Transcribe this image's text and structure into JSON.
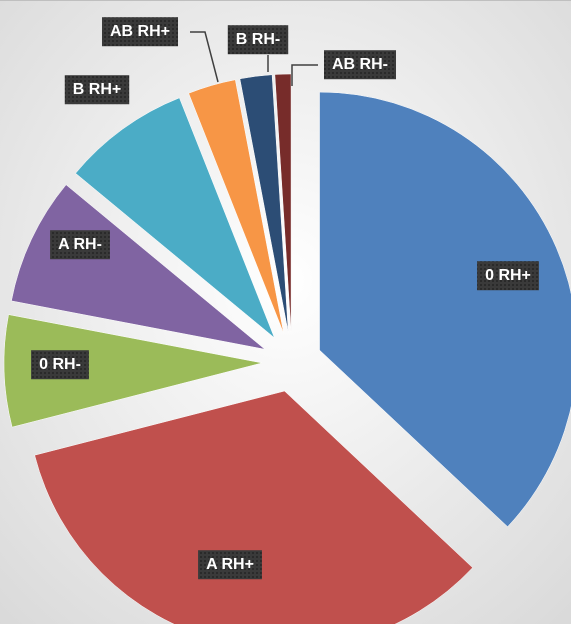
{
  "chart_data": {
    "type": "pie",
    "categories": [
      "0 RH+",
      "A RH+",
      "0 RH-",
      "A RH-",
      "B RH+",
      "AB RH+",
      "B RH-",
      "AB RH-"
    ],
    "values": [
      37,
      34,
      7,
      8,
      8,
      3,
      2,
      1
    ],
    "colors": [
      "#4f81bd",
      "#c0504d",
      "#9bbb59",
      "#8064a2",
      "#4bacc6",
      "#f79646",
      "#2c4d75",
      "#772c2a"
    ]
  }
}
